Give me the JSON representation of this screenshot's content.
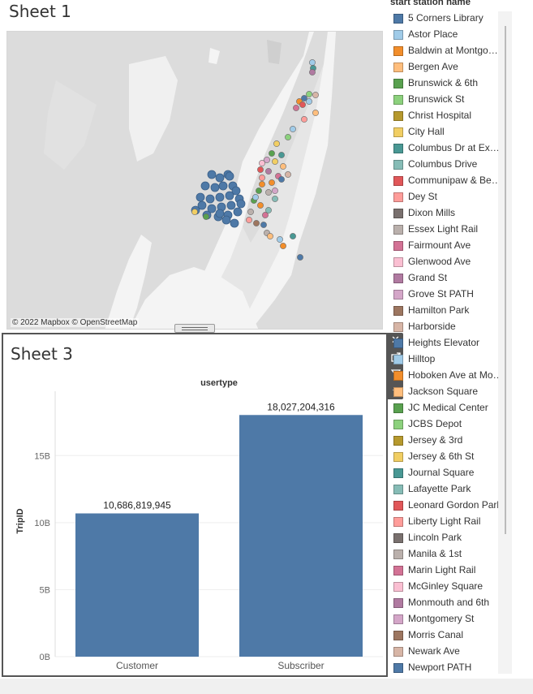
{
  "sheet1": {
    "title": "Sheet 1",
    "attribution": "© 2022 Mapbox © OpenStreetMap",
    "map_clusters": [
      {
        "name": "Jersey City cluster",
        "color": "#4e79a7"
      },
      {
        "name": "Manhattan stations",
        "color": "mixed"
      }
    ]
  },
  "sheet3": {
    "title": "Sheet 3"
  },
  "legend": {
    "title": "start station name",
    "items": [
      {
        "label": "5 Corners Library",
        "color": "#4e79a7"
      },
      {
        "label": "Astor Place",
        "color": "#a0cbe8"
      },
      {
        "label": "Baldwin at Montgomery",
        "color": "#f28e2b"
      },
      {
        "label": "Bergen Ave",
        "color": "#ffbe7d"
      },
      {
        "label": "Brunswick & 6th",
        "color": "#59a14f"
      },
      {
        "label": "Brunswick St",
        "color": "#8cd17d"
      },
      {
        "label": "Christ Hospital",
        "color": "#b6992d"
      },
      {
        "label": "City Hall",
        "color": "#f1ce63"
      },
      {
        "label": "Columbus Dr at Exchange Pl",
        "color": "#499894"
      },
      {
        "label": "Columbus Drive",
        "color": "#86bcb6"
      },
      {
        "label": "Communipaw & Berry Lane",
        "color": "#e15759"
      },
      {
        "label": "Dey St",
        "color": "#ff9d9a"
      },
      {
        "label": "Dixon Mills",
        "color": "#79706e"
      },
      {
        "label": "Essex Light Rail",
        "color": "#bab0ac"
      },
      {
        "label": "Fairmount Ave",
        "color": "#d37295"
      },
      {
        "label": "Glenwood Ave",
        "color": "#fabfd2"
      },
      {
        "label": "Grand St",
        "color": "#b07aa1"
      },
      {
        "label": "Grove St PATH",
        "color": "#d4a6c8"
      },
      {
        "label": "Hamilton Park",
        "color": "#9d7660"
      },
      {
        "label": "Harborside",
        "color": "#d7b5a6"
      },
      {
        "label": "Heights Elevator",
        "color": "#4e79a7"
      },
      {
        "label": "Hilltop",
        "color": "#a0cbe8"
      },
      {
        "label": "Hoboken Ave at Monmouth St",
        "color": "#f28e2b"
      },
      {
        "label": "Jackson Square",
        "color": "#ffbe7d"
      },
      {
        "label": "JC Medical Center",
        "color": "#59a14f"
      },
      {
        "label": "JCBS Depot",
        "color": "#8cd17d"
      },
      {
        "label": "Jersey & 3rd",
        "color": "#b6992d"
      },
      {
        "label": "Jersey & 6th St",
        "color": "#f1ce63"
      },
      {
        "label": "Journal Square",
        "color": "#499894"
      },
      {
        "label": "Lafayette Park",
        "color": "#86bcb6"
      },
      {
        "label": "Leonard Gordon Park",
        "color": "#e15759"
      },
      {
        "label": "Liberty Light Rail",
        "color": "#ff9d9a"
      },
      {
        "label": "Lincoln Park",
        "color": "#79706e"
      },
      {
        "label": "Manila & 1st",
        "color": "#bab0ac"
      },
      {
        "label": "Marin Light Rail",
        "color": "#d37295"
      },
      {
        "label": "McGinley Square",
        "color": "#fabfd2"
      },
      {
        "label": "Monmouth and 6th",
        "color": "#b07aa1"
      },
      {
        "label": "Montgomery St",
        "color": "#d4a6c8"
      },
      {
        "label": "Morris Canal",
        "color": "#9d7660"
      },
      {
        "label": "Newark Ave",
        "color": "#d7b5a6"
      },
      {
        "label": "Newport PATH",
        "color": "#4e79a7"
      }
    ]
  },
  "toolbar": {
    "icons": [
      "close-icon",
      "popout-icon",
      "filter-icon",
      "dropdown-icon"
    ]
  },
  "chart_data": {
    "type": "bar",
    "title": "usertype",
    "categories": [
      "Customer",
      "Subscriber"
    ],
    "values": [
      10686819945,
      18027204316
    ],
    "data_labels": [
      "10,686,819,945",
      "18,027,204,316"
    ],
    "ylabel": "TripID",
    "xlabel": "",
    "yticks": [
      0,
      5000000000,
      10000000000,
      15000000000
    ],
    "ytick_labels": [
      "0B",
      "5B",
      "10B",
      "15B"
    ],
    "ylim": [
      0,
      19800000000
    ],
    "bar_color": "#4e79a7",
    "grid": true
  }
}
